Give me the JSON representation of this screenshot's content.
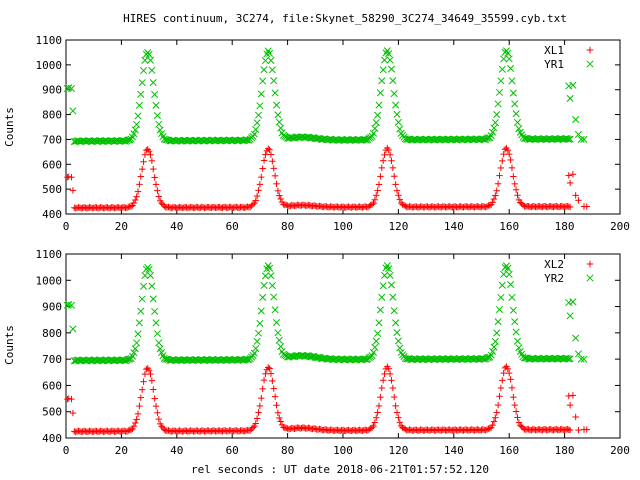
{
  "title": "HIRES continuum, 3C274, file:Skynet_58290_3C274_34649_35599.cyb.txt",
  "xlabel": "rel seconds : UT date 2018-06-21T01:57:52.120",
  "colors": {
    "red": "#ff0000",
    "green": "#00c000"
  },
  "chart_data": [
    {
      "type": "scatter",
      "ylabel": "Counts",
      "xlim": [
        0,
        200
      ],
      "ylim": [
        400,
        1100
      ],
      "xticks": [
        "0",
        "20",
        "40",
        "60",
        "80",
        "100",
        "120",
        "140",
        "160",
        "180",
        "200"
      ],
      "yticks": [
        "400",
        "500",
        "600",
        "700",
        "800",
        "900",
        "1000",
        "1100"
      ],
      "legend_position": "top-right",
      "series": [
        {
          "name": "XL1",
          "marker": "+",
          "color": "#ff0000",
          "baseline": 425,
          "baseline_end": 430,
          "peak_height": 235,
          "bump_height": 8,
          "peaks_x": [
            29.5,
            73,
            116,
            159
          ],
          "peak_width": 2.2,
          "x_range": [
            3,
            182
          ],
          "extras": [
            [
              0.5,
              548
            ],
            [
              1,
              550
            ],
            [
              2,
              548
            ],
            [
              2.5,
              495
            ],
            [
              181.5,
              555
            ],
            [
              182,
              525
            ],
            [
              183,
              560
            ],
            [
              184,
              475
            ],
            [
              185,
              455
            ],
            [
              187,
              430
            ],
            [
              188,
              430
            ]
          ]
        },
        {
          "name": "YR1",
          "marker": "x",
          "color": "#00c000",
          "baseline": 693,
          "baseline_end": 702,
          "peak_height": 357,
          "bump_height": 12,
          "peaks_x": [
            29.5,
            73,
            116,
            159
          ],
          "peak_width": 2.2,
          "x_range": [
            3,
            182
          ],
          "extras": [
            [
              0.5,
              905
            ],
            [
              1,
              908
            ],
            [
              2,
              905
            ],
            [
              2.5,
              815
            ],
            [
              181.5,
              915
            ],
            [
              182,
              865
            ],
            [
              183,
              918
            ],
            [
              184,
              780
            ],
            [
              185,
              720
            ],
            [
              186,
              700
            ],
            [
              187,
              700
            ]
          ]
        }
      ]
    },
    {
      "type": "scatter",
      "ylabel": "Counts",
      "xlim": [
        0,
        200
      ],
      "ylim": [
        400,
        1100
      ],
      "xticks": [
        "0",
        "20",
        "40",
        "60",
        "80",
        "100",
        "120",
        "140",
        "160",
        "180",
        "200"
      ],
      "yticks": [
        "400",
        "500",
        "600",
        "700",
        "800",
        "900",
        "1000",
        "1100"
      ],
      "legend_position": "top-right",
      "series": [
        {
          "name": "XL2",
          "marker": "+",
          "color": "#ff0000",
          "baseline": 425,
          "baseline_end": 432,
          "peak_height": 240,
          "bump_height": 10,
          "peaks_x": [
            29.5,
            73,
            116,
            159
          ],
          "peak_width": 2.2,
          "x_range": [
            3,
            182
          ],
          "extras": [
            [
              0.5,
              548
            ],
            [
              1,
              550
            ],
            [
              2,
              548
            ],
            [
              2.5,
              495
            ],
            [
              181.5,
              560
            ],
            [
              182,
              525
            ],
            [
              183,
              562
            ],
            [
              184,
              480
            ],
            [
              185,
              430
            ],
            [
              187,
              432
            ],
            [
              188,
              432
            ]
          ]
        },
        {
          "name": "YR2",
          "marker": "x",
          "color": "#00c000",
          "baseline": 695,
          "baseline_end": 702,
          "peak_height": 355,
          "bump_height": 15,
          "peaks_x": [
            29.5,
            73,
            116,
            159
          ],
          "peak_width": 2.2,
          "x_range": [
            3,
            182
          ],
          "extras": [
            [
              0.5,
              905
            ],
            [
              1,
              908
            ],
            [
              2,
              905
            ],
            [
              2.5,
              815
            ],
            [
              181.5,
              915
            ],
            [
              182,
              865
            ],
            [
              183,
              918
            ],
            [
              184,
              780
            ],
            [
              185,
              720
            ],
            [
              186,
              700
            ],
            [
              187,
              700
            ]
          ]
        }
      ]
    }
  ]
}
